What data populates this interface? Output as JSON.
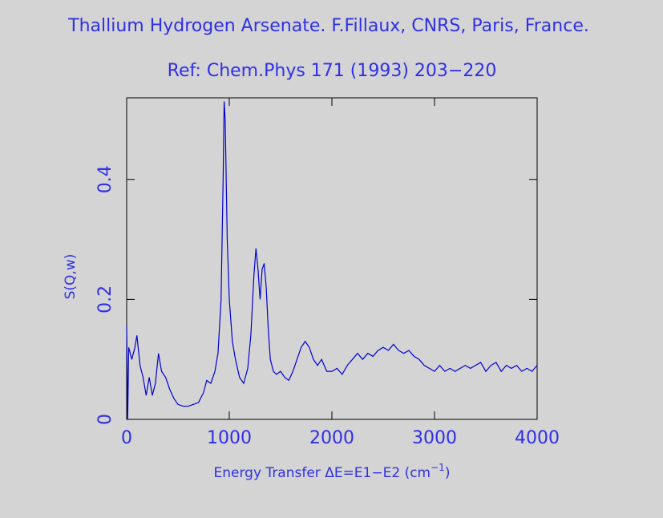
{
  "chart_data": {
    "type": "line",
    "title": "Thallium Hydrogen Arsenate. F.Fillaux, CNRS, Paris, France.",
    "subtitle": "Ref: Chem.Phys 171 (1993) 203−220",
    "xlabel": {
      "text": "Energy Transfer ΔE=E1−E2 (cm",
      "superscript": "−1",
      "suffix": ")"
    },
    "ylabel": "S(Q,w)",
    "xlim": [
      0,
      4000
    ],
    "ylim": [
      0,
      0.536
    ],
    "xticks": [
      0,
      1000,
      2000,
      3000,
      4000
    ],
    "yticks": [
      0,
      0.2,
      0.4
    ],
    "x": [
      0,
      10,
      20,
      50,
      80,
      100,
      130,
      160,
      190,
      220,
      250,
      280,
      310,
      340,
      380,
      420,
      460,
      500,
      550,
      600,
      650,
      700,
      750,
      780,
      820,
      860,
      890,
      920,
      940,
      950,
      960,
      980,
      1000,
      1030,
      1060,
      1100,
      1140,
      1180,
      1210,
      1240,
      1260,
      1280,
      1300,
      1320,
      1340,
      1360,
      1380,
      1400,
      1430,
      1460,
      1500,
      1540,
      1580,
      1620,
      1660,
      1700,
      1740,
      1780,
      1820,
      1860,
      1900,
      1950,
      2000,
      2050,
      2100,
      2150,
      2200,
      2250,
      2300,
      2350,
      2400,
      2450,
      2500,
      2550,
      2600,
      2650,
      2700,
      2750,
      2800,
      2850,
      2900,
      2950,
      3000,
      3050,
      3100,
      3150,
      3200,
      3250,
      3300,
      3350,
      3400,
      3450,
      3500,
      3550,
      3600,
      3650,
      3700,
      3750,
      3800,
      3850,
      3900,
      3950,
      4000
    ],
    "series": [
      {
        "color": "#0000d0",
        "values": [
          0.155,
          0,
          0.12,
          0.1,
          0.12,
          0.14,
          0.09,
          0.07,
          0.04,
          0.07,
          0.04,
          0.06,
          0.11,
          0.08,
          0.07,
          0.05,
          0.035,
          0.025,
          0.022,
          0.022,
          0.025,
          0.028,
          0.045,
          0.065,
          0.06,
          0.08,
          0.11,
          0.2,
          0.4,
          0.53,
          0.5,
          0.3,
          0.2,
          0.13,
          0.1,
          0.07,
          0.06,
          0.085,
          0.14,
          0.24,
          0.285,
          0.25,
          0.2,
          0.25,
          0.26,
          0.22,
          0.15,
          0.1,
          0.08,
          0.075,
          0.08,
          0.07,
          0.065,
          0.08,
          0.1,
          0.12,
          0.13,
          0.12,
          0.1,
          0.09,
          0.1,
          0.08,
          0.08,
          0.085,
          0.075,
          0.09,
          0.1,
          0.11,
          0.1,
          0.11,
          0.105,
          0.115,
          0.12,
          0.115,
          0.125,
          0.115,
          0.11,
          0.115,
          0.105,
          0.1,
          0.09,
          0.085,
          0.08,
          0.09,
          0.08,
          0.085,
          0.08,
          0.085,
          0.09,
          0.085,
          0.09,
          0.095,
          0.08,
          0.09,
          0.095,
          0.08,
          0.09,
          0.085,
          0.09,
          0.08,
          0.085,
          0.08,
          0.09
        ]
      }
    ]
  }
}
